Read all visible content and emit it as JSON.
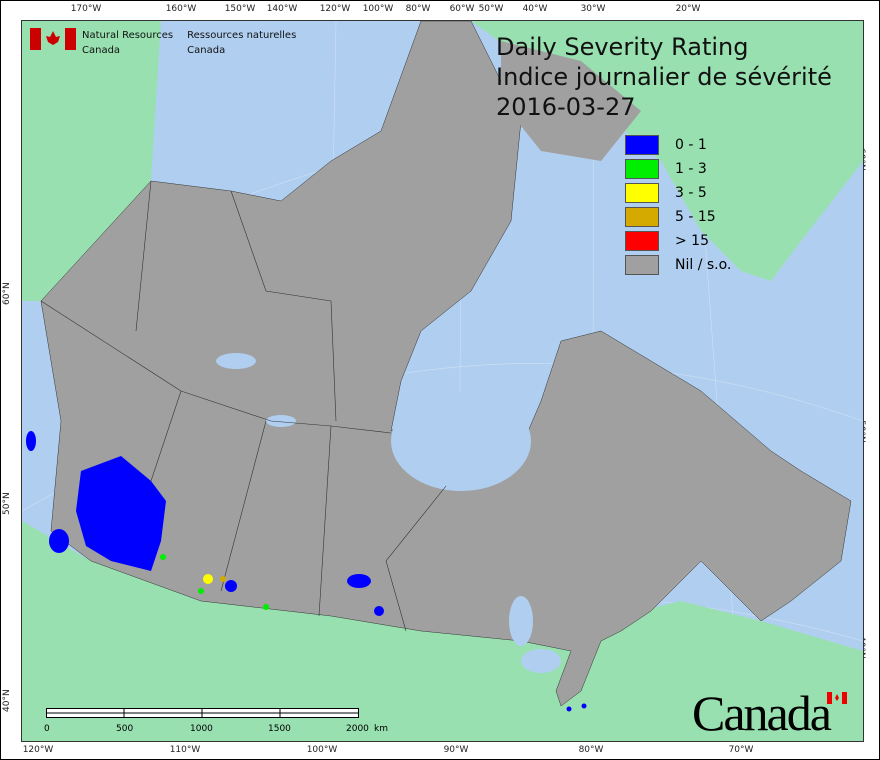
{
  "title": {
    "en": "Daily Severity Rating",
    "fr": "Indice journalier de sévérité",
    "date": "2016-03-27"
  },
  "agency": {
    "en_line1": "Natural Resources",
    "en_line2": "Canada",
    "fr_line1": "Ressources naturelles",
    "fr_line2": "Canada"
  },
  "legend": [
    {
      "label": "0 - 1",
      "color": "#0000ff"
    },
    {
      "label": "1 - 3",
      "color": "#00ee00"
    },
    {
      "label": "3 - 5",
      "color": "#ffff00"
    },
    {
      "label": "5 - 15",
      "color": "#d4aa00"
    },
    {
      "label": "> 15",
      "color": "#ff0000"
    },
    {
      "label": "Nil / s.o.",
      "color": "#a0a0a0"
    }
  ],
  "top_ticks": [
    "170°W",
    "160°W",
    "150°W",
    "140°W",
    "120°W",
    "100°W",
    "80°W",
    "60°W",
    "50°W",
    "40°W",
    "30°W",
    "20°W"
  ],
  "bottom_ticks": [
    "120°W",
    "110°W",
    "100°W",
    "90°W",
    "80°W",
    "70°W"
  ],
  "left_ticks": [
    "60°N",
    "50°N",
    "40°N"
  ],
  "right_ticks": [
    "60°N",
    "50°N",
    "40°N"
  ],
  "scale": {
    "labels": [
      "0",
      "500",
      "1000",
      "1500",
      "2000"
    ],
    "unit": "km"
  },
  "wordmark": "Canada",
  "colors": {
    "water": "#b0cff0",
    "land_other": "#98e0b0",
    "canada_land": "#a0a0a0"
  }
}
